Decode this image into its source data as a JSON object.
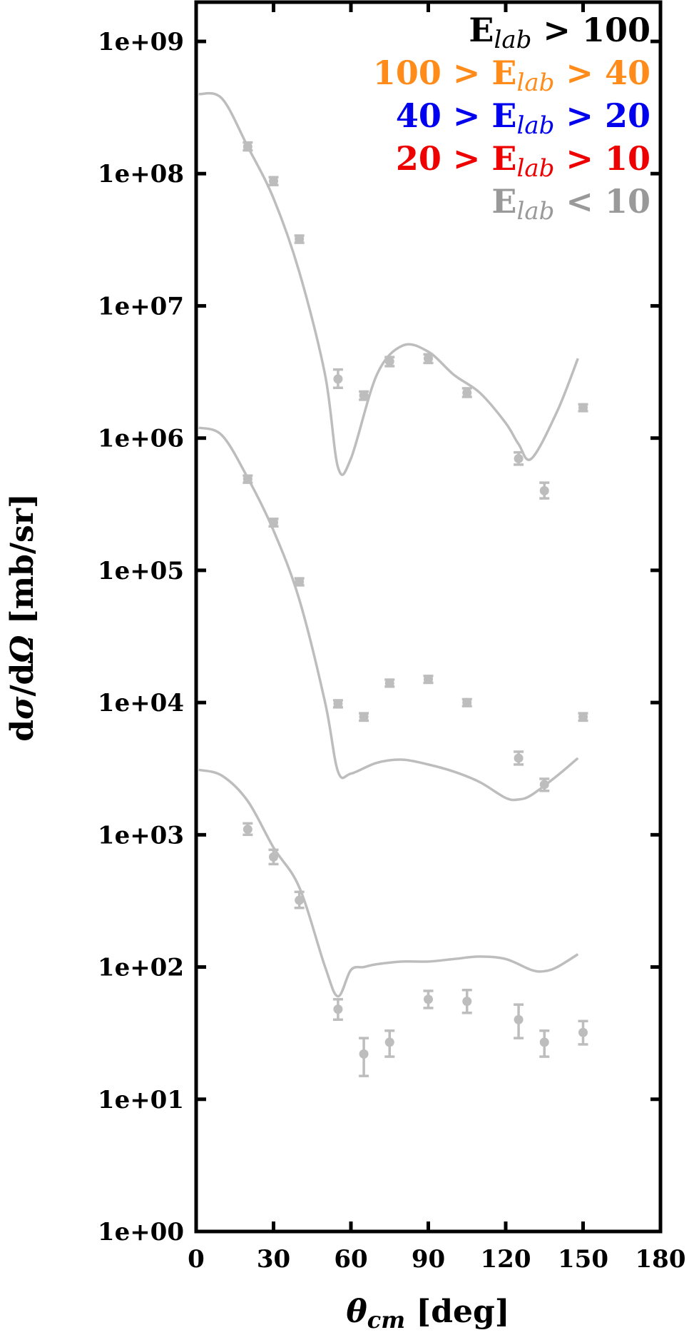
{
  "chart_data": {
    "type": "scatter",
    "xlabel": "θcm [deg]",
    "ylabel": "dσ/dΩ [mb/sr]",
    "xlim": [
      0,
      180
    ],
    "ylim": [
      1,
      1000000000
    ],
    "yscale": "log",
    "x_ticks": [
      0,
      30,
      60,
      90,
      120,
      150,
      180
    ],
    "y_ticks": [
      1,
      10,
      100,
      1000,
      10000,
      100000,
      1000000,
      10000000,
      100000000,
      1000000000
    ],
    "x_tick_labels": [
      "0",
      "30",
      "60",
      "90",
      "120",
      "150",
      "180"
    ],
    "y_tick_labels": [
      "1e+00",
      "1e+01",
      "1e+02",
      "1e+03",
      "1e+04",
      "1e+05",
      "1e+06",
      "1e+07",
      "1e+08",
      "1e+09"
    ],
    "legend": {
      "placement": "top-right",
      "entries": [
        {
          "text": "E_lab > 100",
          "color": "#000000"
        },
        {
          "text": "100 > E_lab > 40",
          "color": "#ff8c1a"
        },
        {
          "text": "40 > E_lab > 20",
          "color": "#0000ee"
        },
        {
          "text": "20 > E_lab > 10",
          "color": "#ee0000"
        },
        {
          "text": "E_lab < 10",
          "color": "#999999"
        }
      ]
    },
    "marker_color": "#bdbdbd",
    "curve_color": "#bdbdbd",
    "series": [
      {
        "points": [
          {
            "x": 20,
            "y": 160000000,
            "lo": 150000000,
            "hi": 172000000
          },
          {
            "x": 30,
            "y": 88000000,
            "lo": 82000000,
            "hi": 94000000
          },
          {
            "x": 40,
            "y": 32000000,
            "lo": 30000000,
            "hi": 34000000
          },
          {
            "x": 55,
            "y": 2800000,
            "lo": 2400000,
            "hi": 3300000
          },
          {
            "x": 65,
            "y": 2100000,
            "lo": 1950000,
            "hi": 2250000
          },
          {
            "x": 75,
            "y": 3800000,
            "lo": 3500000,
            "hi": 4100000
          },
          {
            "x": 90,
            "y": 4000000,
            "lo": 3700000,
            "hi": 4300000
          },
          {
            "x": 105,
            "y": 2200000,
            "lo": 2050000,
            "hi": 2380000
          },
          {
            "x": 125,
            "y": 700000,
            "lo": 630000,
            "hi": 780000
          },
          {
            "x": 135,
            "y": 400000,
            "lo": 350000,
            "hi": 460000
          },
          {
            "x": 150,
            "y": 1700000,
            "lo": 1600000,
            "hi": 1800000
          }
        ],
        "curve": {
          "x": [
            1,
            10,
            20,
            30,
            40,
            50,
            55,
            60,
            70,
            80,
            90,
            100,
            110,
            120,
            125,
            130,
            140,
            148
          ],
          "y": [
            400000000,
            370000000,
            160000000,
            65000000,
            18000000,
            3000000,
            600000,
            700000,
            3000000,
            5000000,
            4500000,
            3000000,
            2200000,
            1300000,
            900000,
            700000,
            1600000,
            4000000
          ]
        }
      },
      {
        "points": [
          {
            "x": 20,
            "y": 490000,
            "lo": 460000,
            "hi": 520000
          },
          {
            "x": 30,
            "y": 230000,
            "lo": 215000,
            "hi": 245000
          },
          {
            "x": 40,
            "y": 82000,
            "lo": 77000,
            "hi": 87000
          },
          {
            "x": 55,
            "y": 9800,
            "lo": 9200,
            "hi": 10400
          },
          {
            "x": 65,
            "y": 7800,
            "lo": 7300,
            "hi": 8300
          },
          {
            "x": 75,
            "y": 14000,
            "lo": 13200,
            "hi": 14900
          },
          {
            "x": 90,
            "y": 15000,
            "lo": 14100,
            "hi": 15900
          },
          {
            "x": 105,
            "y": 10000,
            "lo": 9400,
            "hi": 10600
          },
          {
            "x": 125,
            "y": 3800,
            "lo": 3400,
            "hi": 4250
          },
          {
            "x": 135,
            "y": 2400,
            "lo": 2150,
            "hi": 2650
          },
          {
            "x": 150,
            "y": 7800,
            "lo": 7300,
            "hi": 8300
          }
        ],
        "curve": {
          "x": [
            1,
            10,
            20,
            30,
            40,
            50,
            55,
            60,
            70,
            80,
            90,
            100,
            110,
            120,
            125,
            130,
            140,
            148
          ],
          "y": [
            1200000,
            1050000,
            500000,
            200000,
            60000,
            10000,
            3000,
            2900,
            3500,
            3700,
            3400,
            3000,
            2500,
            1900,
            1850,
            2000,
            2800,
            3800
          ]
        }
      },
      {
        "points": [
          {
            "x": 20,
            "y": 1100,
            "lo": 1000,
            "hi": 1220
          },
          {
            "x": 30,
            "y": 680,
            "lo": 600,
            "hi": 770
          },
          {
            "x": 40,
            "y": 320,
            "lo": 280,
            "hi": 370
          },
          {
            "x": 55,
            "y": 48,
            "lo": 40,
            "hi": 57
          },
          {
            "x": 65,
            "y": 22,
            "lo": 15,
            "hi": 29
          },
          {
            "x": 75,
            "y": 27,
            "lo": 21,
            "hi": 33
          },
          {
            "x": 90,
            "y": 57,
            "lo": 49,
            "hi": 66
          },
          {
            "x": 105,
            "y": 55,
            "lo": 45,
            "hi": 67
          },
          {
            "x": 125,
            "y": 40,
            "lo": 29,
            "hi": 52
          },
          {
            "x": 135,
            "y": 27,
            "lo": 21,
            "hi": 33
          },
          {
            "x": 150,
            "y": 32,
            "lo": 26,
            "hi": 39
          }
        ],
        "curve": {
          "x": [
            1,
            10,
            20,
            30,
            40,
            50,
            55,
            60,
            65,
            70,
            80,
            90,
            100,
            110,
            120,
            130,
            135,
            140,
            148
          ],
          "y": [
            3100,
            2800,
            1800,
            800,
            400,
            100,
            60,
            95,
            100,
            105,
            110,
            110,
            115,
            120,
            115,
            95,
            93,
            100,
            125
          ]
        }
      }
    ]
  }
}
